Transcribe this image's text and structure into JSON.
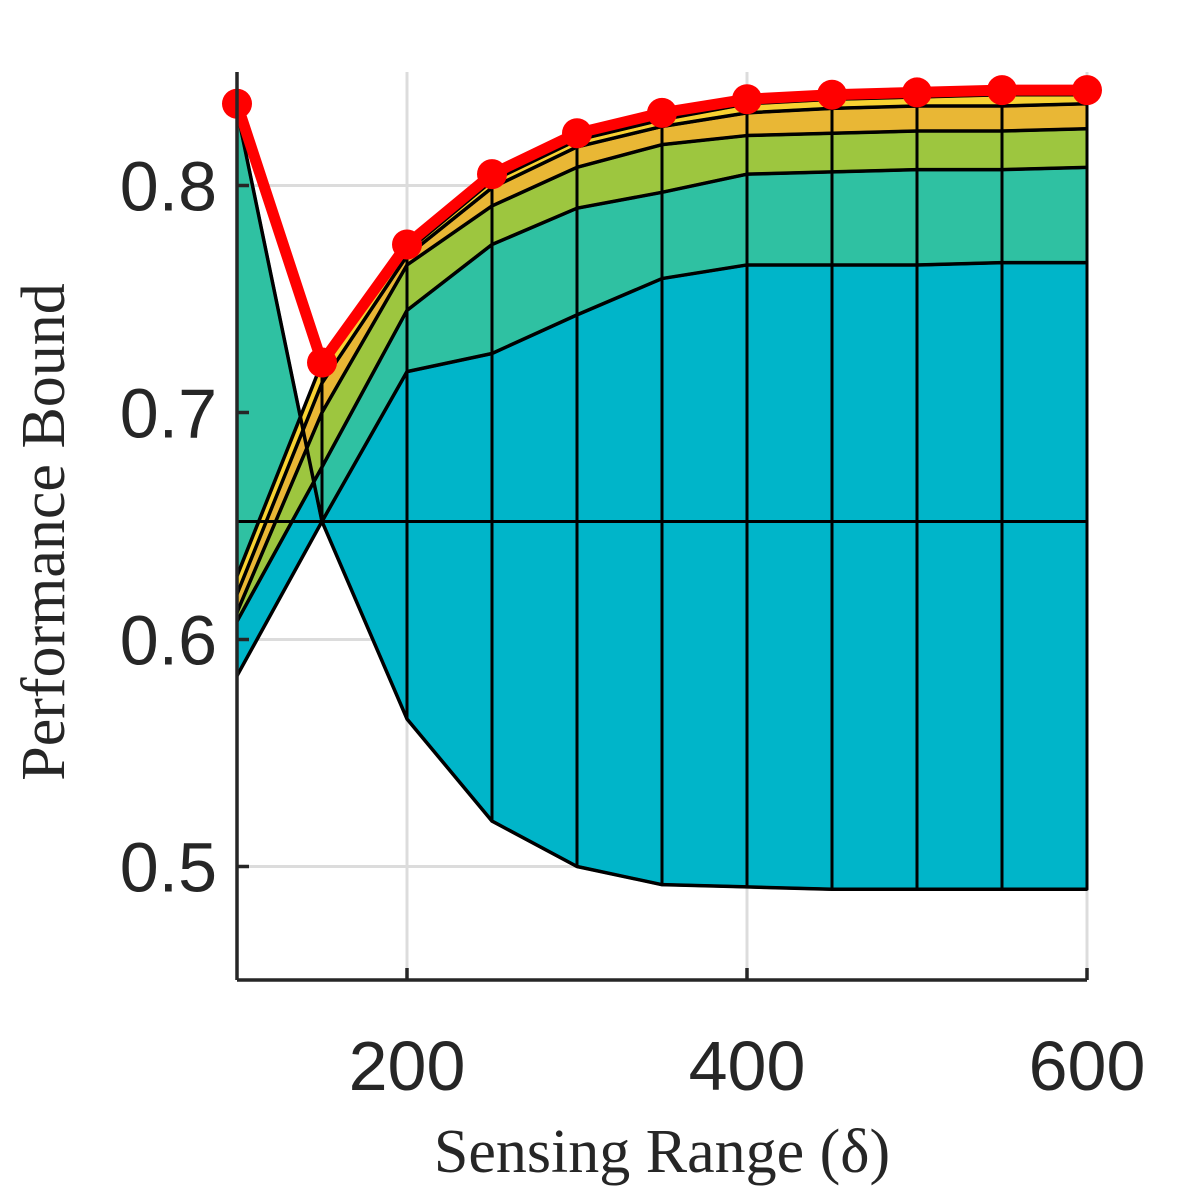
{
  "chart_data": {
    "type": "area",
    "title": "",
    "xlabel": "Sensing Range (δ)",
    "ylabel": "Performance Bound",
    "xlim": [
      100,
      600
    ],
    "ylim": [
      0.45,
      0.85
    ],
    "xticks": [
      "200",
      "400",
      "600"
    ],
    "yticks": [
      "0.5",
      "0.6",
      "0.7",
      "0.8"
    ],
    "grid": true,
    "x": [
      100,
      150,
      200,
      250,
      300,
      350,
      400,
      450,
      500,
      550,
      600
    ],
    "baseline": 0.652,
    "series": [
      {
        "color": "#00b5c9",
        "values": [
          0.584,
          0.652,
          0.565,
          0.52,
          0.5,
          0.492,
          0.491,
          0.49,
          0.49,
          0.49,
          0.49
        ]
      },
      {
        "color": "#00b5c9",
        "values": [
          0.833,
          0.652,
          0.718,
          0.726,
          0.743,
          0.759,
          0.765,
          0.765,
          0.765,
          0.766,
          0.766
        ]
      },
      {
        "color": "#6cc95c",
        "values": [
          0.608,
          0.676,
          0.745,
          0.774,
          0.79,
          0.797,
          0.805,
          0.806,
          0.807,
          0.807,
          0.808
        ]
      },
      {
        "color": "#9dc63f",
        "values": [
          0.612,
          0.7,
          0.765,
          0.791,
          0.808,
          0.818,
          0.822,
          0.823,
          0.824,
          0.824,
          0.825
        ]
      },
      {
        "color": "#fdbf3a",
        "values": [
          0.62,
          0.713,
          0.769,
          0.799,
          0.817,
          0.826,
          0.832,
          0.834,
          0.835,
          0.835,
          0.836
        ]
      },
      {
        "color": "#f3e32d",
        "values": [
          0.628,
          0.722,
          0.771,
          0.802,
          0.82,
          0.829,
          0.836,
          0.838,
          0.839,
          0.84,
          0.84
        ]
      },
      {
        "color": "#ff0000",
        "values": [
          0.836,
          0.722,
          0.774,
          0.805,
          0.823,
          0.832,
          0.838,
          0.84,
          0.841,
          0.842,
          0.842
        ]
      }
    ],
    "fill_colors": [
      "#00b5c9",
      "#00b5c9",
      "#2fc1a2",
      "#9dc63f",
      "#e9b735",
      "#f8d232",
      "#f3e32d"
    ],
    "bound_color": "#ff0000"
  }
}
